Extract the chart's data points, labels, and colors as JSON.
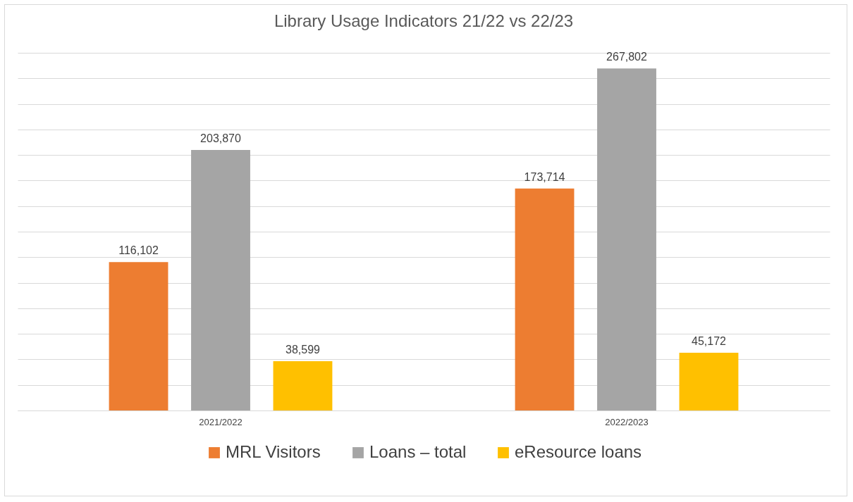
{
  "chart_data": {
    "type": "bar",
    "title": "Library Usage Indicators 21/22 vs 22/23",
    "categories": [
      "2021/2022",
      "2022/2023"
    ],
    "series": [
      {
        "name": "MRL Visitors",
        "color": "#ed7d31",
        "values": [
          116102,
          173714
        ],
        "value_labels": [
          "116,102",
          "173,714"
        ]
      },
      {
        "name": "Loans – total",
        "color": "#a5a5a5",
        "values": [
          203870,
          267802
        ],
        "value_labels": [
          "203,870",
          "267,802"
        ]
      },
      {
        "name": "eResource loans",
        "color": "#ffc000",
        "values": [
          38599,
          45172
        ],
        "value_labels": [
          "38,599",
          "45,172"
        ]
      }
    ],
    "grid": "y",
    "legend": "bottom",
    "tick_labels": "x"
  }
}
